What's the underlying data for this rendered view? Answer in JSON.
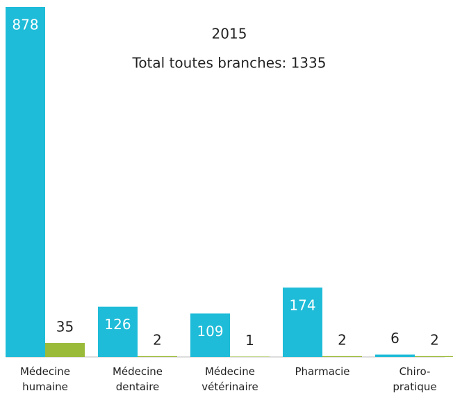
{
  "chart_data": {
    "type": "bar",
    "title": "2015",
    "subtitle": "Total toutes branches: 1335",
    "categories": [
      "Médecine humaine",
      "Médecine dentaire",
      "Médecine vétérinaire",
      "Pharmacie",
      "Chiro-pratique"
    ],
    "series": [
      {
        "color": "#1ebcd8",
        "values": [
          878,
          126,
          109,
          174,
          6
        ]
      },
      {
        "color": "#9aba3a",
        "values": [
          35,
          2,
          1,
          2,
          2
        ]
      }
    ]
  }
}
